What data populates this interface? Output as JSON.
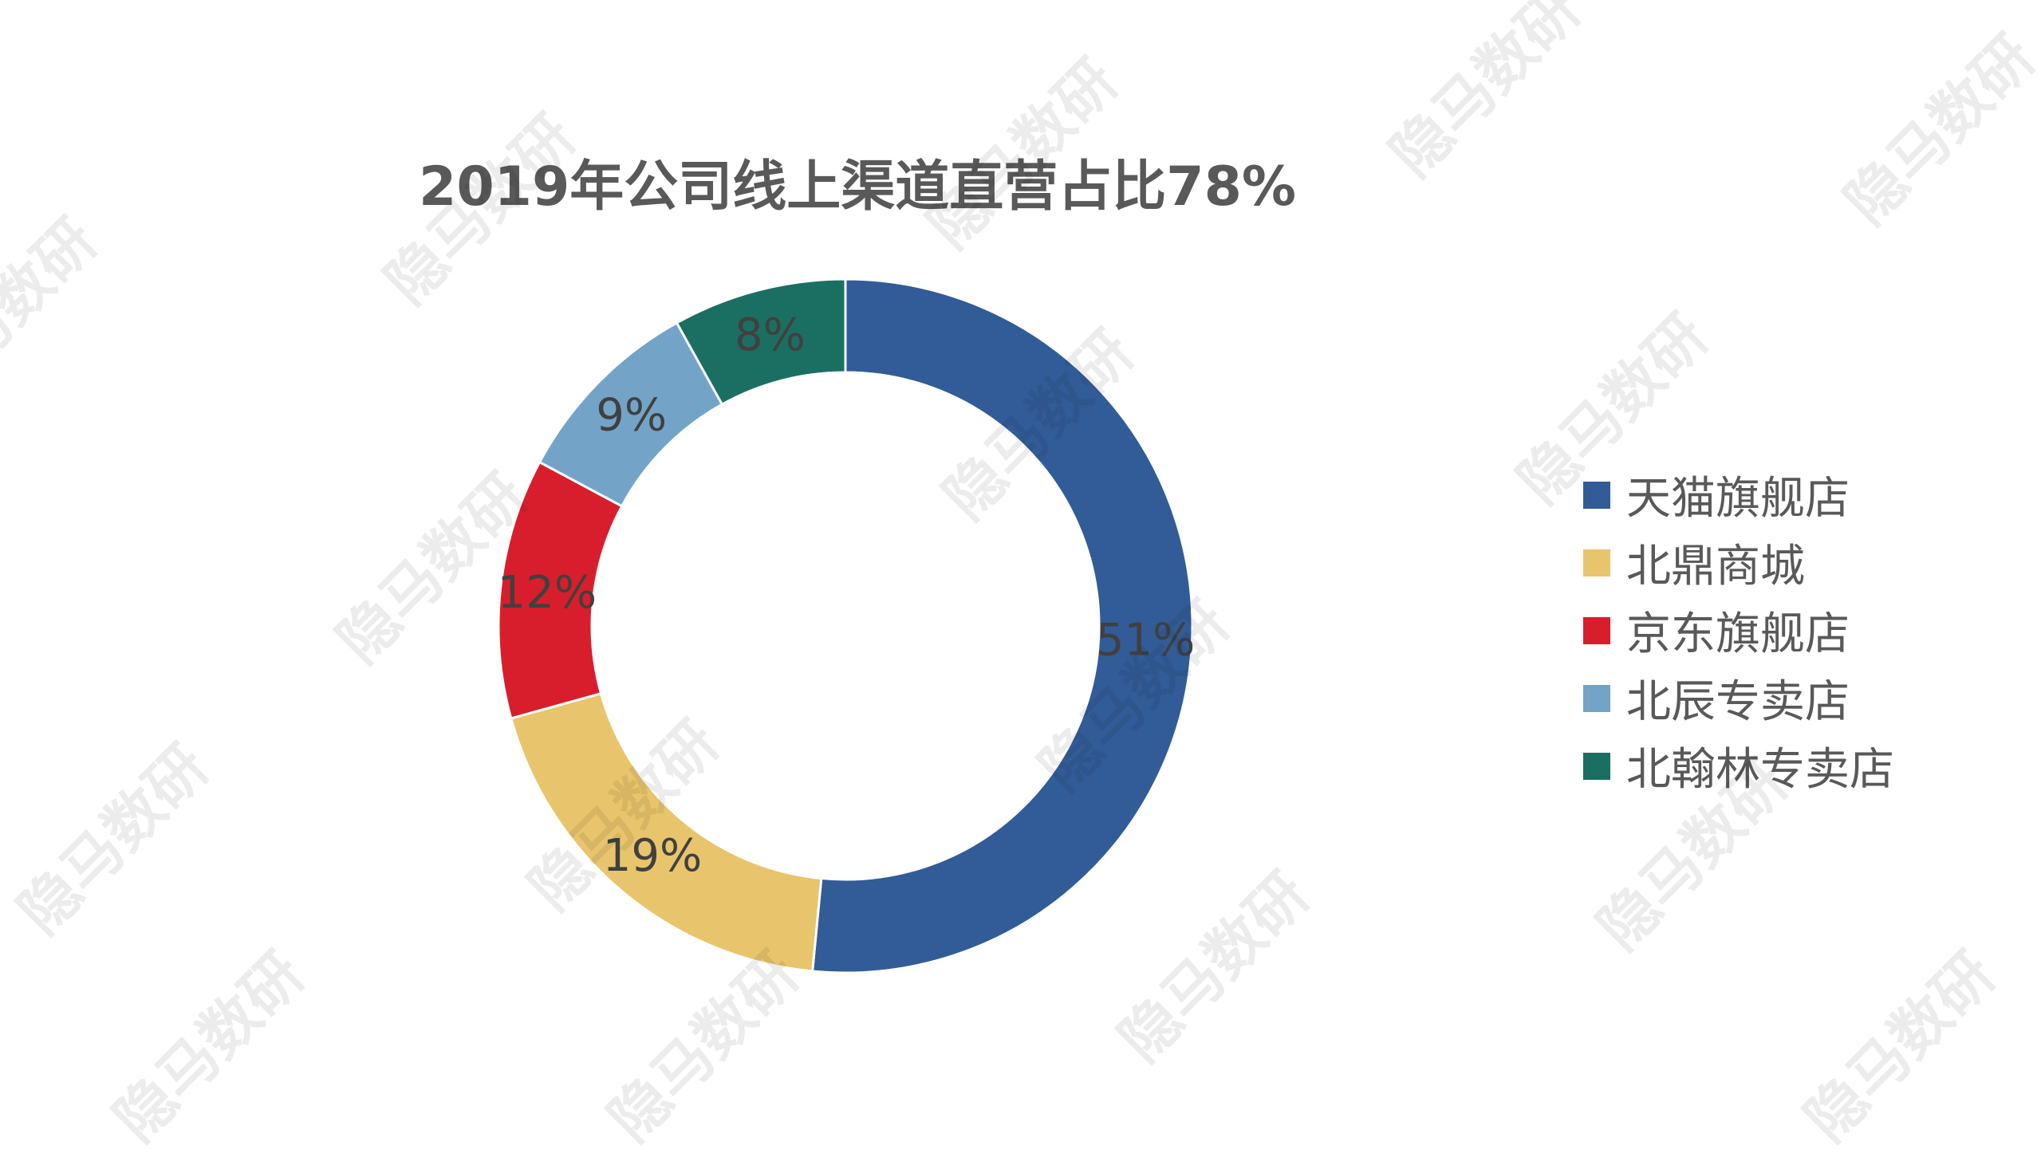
{
  "chart_data": {
    "type": "pie",
    "variant": "donut",
    "title": "2019年公司线上渠道直营占比78%",
    "categories": [
      "天猫旗舰店",
      "北鼎商城",
      "京东旗舰店",
      "北辰专卖店",
      "北翰林专卖店"
    ],
    "values": [
      51,
      19,
      12,
      9,
      8
    ],
    "data_labels": [
      "51%",
      "19%",
      "12%",
      "9%",
      "8%"
    ],
    "colors": [
      "#325c98",
      "#e8c56c",
      "#d81e2c",
      "#73a4c8",
      "#1b6f62"
    ],
    "start": "top",
    "direction": "clockwise",
    "legend_position": "right"
  },
  "watermark": {
    "text": "隐马数研"
  }
}
